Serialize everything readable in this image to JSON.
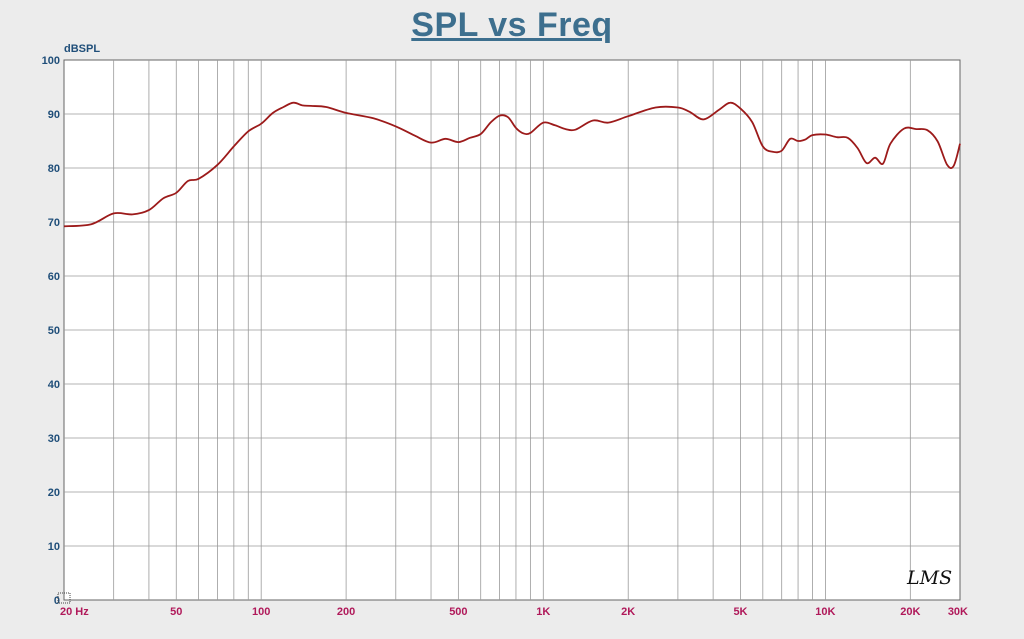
{
  "chart_data": {
    "type": "line",
    "title": "SPL vs Freq",
    "ylabel": "dBSPL",
    "xscale": "log",
    "xlim": [
      20,
      30000
    ],
    "ylim": [
      0,
      100
    ],
    "y_ticks": [
      "100",
      "90",
      "80",
      "70",
      "60",
      "50",
      "40",
      "30",
      "20",
      "10",
      "0"
    ],
    "x_tick_labels": [
      {
        "value": 20,
        "label": "20  Hz"
      },
      {
        "value": 50,
        "label": "50"
      },
      {
        "value": 100,
        "label": "100"
      },
      {
        "value": 200,
        "label": "200"
      },
      {
        "value": 500,
        "label": "500"
      },
      {
        "value": 1000,
        "label": "1K"
      },
      {
        "value": 2000,
        "label": "2K"
      },
      {
        "value": 5000,
        "label": "5K"
      },
      {
        "value": 10000,
        "label": "10K"
      },
      {
        "value": 20000,
        "label": "20K"
      },
      {
        "value": 30000,
        "label": "30K"
      }
    ],
    "grid": true,
    "logo_text": "LMS",
    "line_color": "#9c1a1a",
    "series": [
      {
        "x": [
          20,
          25,
          30,
          35,
          40,
          45,
          50,
          55,
          60,
          70,
          80,
          90,
          100,
          110,
          120,
          130,
          140,
          150,
          170,
          200,
          250,
          300,
          350,
          400,
          450,
          500,
          550,
          600,
          650,
          700,
          750,
          800,
          850,
          900,
          1000,
          1100,
          1200,
          1300,
          1500,
          1700,
          2000,
          2500,
          3000,
          3300,
          3700,
          4200,
          4600,
          5000,
          5500,
          6000,
          6500,
          7000,
          7500,
          8000,
          8500,
          9000,
          10000,
          11000,
          12000,
          13000,
          14000,
          15000,
          16000,
          17000,
          19000,
          21000,
          23000,
          25000,
          27000,
          28500,
          30000
        ],
        "y": [
          69.2,
          69.6,
          71.6,
          71.4,
          72.2,
          74.4,
          75.4,
          77.6,
          78.0,
          80.6,
          84.0,
          86.8,
          88.2,
          90.2,
          91.3,
          92.1,
          91.6,
          91.5,
          91.3,
          90.2,
          89.2,
          87.7,
          86.0,
          84.7,
          85.4,
          84.8,
          85.6,
          86.3,
          88.4,
          89.7,
          89.4,
          87.4,
          86.4,
          86.5,
          88.4,
          87.9,
          87.2,
          87.1,
          88.8,
          88.4,
          89.6,
          91.2,
          91.2,
          90.4,
          89.0,
          90.8,
          92.1,
          91.0,
          88.5,
          84.0,
          83.0,
          83.2,
          85.4,
          85.0,
          85.3,
          86.1,
          86.2,
          85.7,
          85.6,
          83.7,
          80.9,
          81.9,
          80.8,
          84.5,
          87.3,
          87.2,
          87.0,
          84.9,
          80.6,
          80.4,
          84.5
        ]
      }
    ]
  }
}
